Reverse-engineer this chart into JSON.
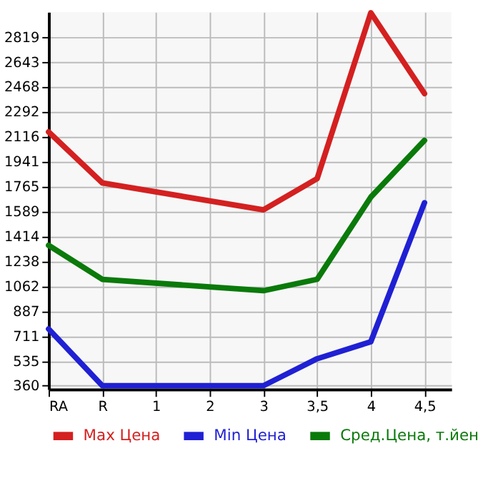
{
  "chart_data": {
    "type": "line",
    "categories": [
      "RA",
      "R",
      "1",
      "2",
      "3",
      "3,5",
      "4",
      "4,5"
    ],
    "series": [
      {
        "name": "Max Цена",
        "color": "#d42020",
        "values": [
          2150,
          1790,
          null,
          null,
          1600,
          1820,
          2990,
          2420
        ]
      },
      {
        "name": "Min Цена",
        "color": "#2020d4",
        "values": [
          760,
          360,
          null,
          null,
          360,
          550,
          670,
          1650
        ]
      },
      {
        "name": "Сред.Цена, т.йен",
        "color": "#0a7a0a",
        "values": [
          1350,
          1110,
          null,
          null,
          1030,
          1110,
          1690,
          2090
        ]
      }
    ],
    "ylim": [
      335,
      2995
    ],
    "yticks": [
      360,
      535,
      711,
      887,
      1062,
      1238,
      1414,
      1589,
      1765,
      1941,
      2116,
      2292,
      2468,
      2643,
      2819
    ],
    "grid": true,
    "legend": "bottom",
    "marker": "none",
    "line_style": "solid"
  }
}
